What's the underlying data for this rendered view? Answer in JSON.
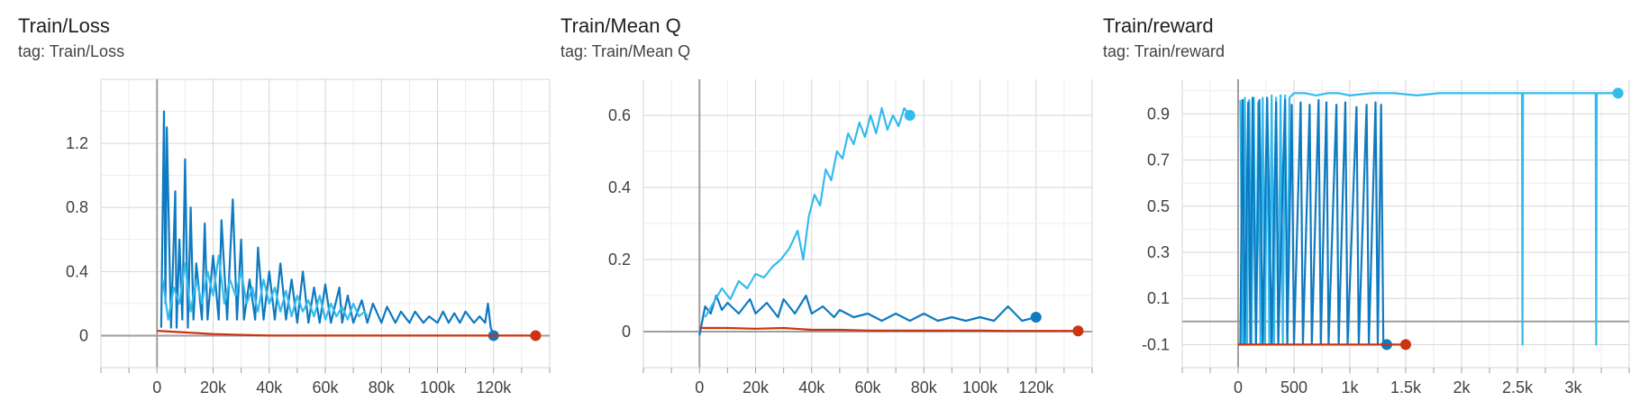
{
  "colors": {
    "series_dark_blue": "#0f7ac0",
    "series_light_blue": "#33bbee",
    "series_red": "#cc3311",
    "grid": "#d6d6d6",
    "axis": "#9e9e9e"
  },
  "chart_data": [
    {
      "type": "line",
      "title": "Train/Loss",
      "tag": "tag: Train/Loss",
      "xlim": [
        -20000,
        140000
      ],
      "ylim": [
        -0.2,
        1.6
      ],
      "x_ticks": [
        0,
        20000,
        40000,
        60000,
        80000,
        100000,
        120000
      ],
      "x_tick_labels": [
        "0",
        "20k",
        "40k",
        "60k",
        "80k",
        "100k",
        "120k"
      ],
      "y_ticks": [
        0,
        0.4,
        0.8,
        1.2
      ],
      "y_tick_labels": [
        "0",
        "0.4",
        "0.8",
        "1.2"
      ],
      "grid": true,
      "series": [
        {
          "color": "#0f7ac0",
          "endpoint_marker": true,
          "x": [
            1500,
            2500,
            3000,
            3500,
            5000,
            6500,
            7000,
            8000,
            9000,
            10000,
            11000,
            12000,
            13000,
            14000,
            16000,
            17000,
            18000,
            20000,
            22000,
            23000,
            25000,
            27000,
            28500,
            30000,
            31000,
            33000,
            35000,
            36000,
            38000,
            40000,
            42000,
            44000,
            46000,
            48000,
            50000,
            52000,
            54000,
            56000,
            58000,
            60000,
            62000,
            65000,
            66000,
            68000,
            70000,
            73000,
            75000,
            77000,
            80000,
            82000,
            85000,
            87000,
            90000,
            92000,
            95000,
            97000,
            100000,
            102000,
            104000,
            106000,
            108000,
            110000,
            113000,
            115000,
            117000,
            118000,
            119000,
            120000
          ],
          "y": [
            0.05,
            1.4,
            0.2,
            1.3,
            0.05,
            0.9,
            0.05,
            0.6,
            0.1,
            1.1,
            0.05,
            0.8,
            0.1,
            0.45,
            0.1,
            0.7,
            0.1,
            0.5,
            0.1,
            0.72,
            0.1,
            0.85,
            0.1,
            0.6,
            0.1,
            0.35,
            0.1,
            0.55,
            0.1,
            0.4,
            0.1,
            0.45,
            0.1,
            0.35,
            0.08,
            0.4,
            0.08,
            0.3,
            0.08,
            0.32,
            0.08,
            0.3,
            0.08,
            0.25,
            0.08,
            0.22,
            0.08,
            0.2,
            0.08,
            0.18,
            0.08,
            0.15,
            0.08,
            0.15,
            0.08,
            0.12,
            0.08,
            0.15,
            0.08,
            0.14,
            0.08,
            0.15,
            0.08,
            0.12,
            0.08,
            0.2,
            0.05,
            0.0
          ]
        },
        {
          "color": "#33bbee",
          "endpoint_marker": false,
          "x": [
            2000,
            4000,
            6000,
            8000,
            10000,
            12000,
            14000,
            16000,
            18000,
            20000,
            22000,
            24000,
            26000,
            28000,
            30000,
            32000,
            34000,
            36000,
            38000,
            40000,
            42000,
            44000,
            46000,
            48000,
            50000,
            52000,
            54000,
            56000,
            58000,
            60000,
            62000,
            64000,
            66000,
            68000,
            70000,
            72000,
            74000,
            75000
          ],
          "y": [
            0.35,
            0.1,
            0.3,
            0.2,
            0.45,
            0.15,
            0.35,
            0.2,
            0.4,
            0.25,
            0.5,
            0.2,
            0.35,
            0.25,
            0.4,
            0.2,
            0.3,
            0.15,
            0.35,
            0.2,
            0.3,
            0.15,
            0.28,
            0.12,
            0.25,
            0.15,
            0.22,
            0.12,
            0.25,
            0.1,
            0.2,
            0.12,
            0.18,
            0.1,
            0.2,
            0.12,
            0.15,
            0.12
          ]
        },
        {
          "color": "#cc3311",
          "endpoint_marker": true,
          "x": [
            0,
            10000,
            20000,
            30000,
            40000,
            50000,
            60000,
            70000,
            80000,
            90000,
            100000,
            110000,
            120000,
            130000,
            135000
          ],
          "y": [
            0.03,
            0.02,
            0.01,
            0.005,
            0.0,
            0.0,
            0.0,
            0.0,
            0.0,
            0.0,
            0.0,
            0.0,
            0.0,
            0.0,
            0.0
          ]
        }
      ]
    },
    {
      "type": "line",
      "title": "Train/Mean Q",
      "tag": "tag: Train/Mean Q",
      "xlim": [
        -20000,
        140000
      ],
      "ylim": [
        -0.1,
        0.7
      ],
      "x_ticks": [
        0,
        20000,
        40000,
        60000,
        80000,
        100000,
        120000
      ],
      "x_tick_labels": [
        "0",
        "20k",
        "40k",
        "60k",
        "80k",
        "100k",
        "120k"
      ],
      "y_ticks": [
        0,
        0.2,
        0.4,
        0.6
      ],
      "y_tick_labels": [
        "0",
        "0.2",
        "0.4",
        "0.6"
      ],
      "grid": true,
      "series": [
        {
          "color": "#0f7ac0",
          "endpoint_marker": true,
          "x": [
            0,
            2000,
            4000,
            6000,
            8000,
            10000,
            14000,
            18000,
            20000,
            24000,
            28000,
            30000,
            34000,
            38000,
            40000,
            44000,
            48000,
            50000,
            55000,
            60000,
            65000,
            70000,
            75000,
            80000,
            85000,
            90000,
            95000,
            100000,
            105000,
            110000,
            115000,
            120000
          ],
          "y": [
            -0.01,
            0.07,
            0.05,
            0.1,
            0.06,
            0.08,
            0.05,
            0.09,
            0.05,
            0.08,
            0.04,
            0.09,
            0.05,
            0.1,
            0.05,
            0.07,
            0.04,
            0.06,
            0.04,
            0.05,
            0.03,
            0.05,
            0.03,
            0.05,
            0.03,
            0.04,
            0.03,
            0.04,
            0.03,
            0.07,
            0.03,
            0.04
          ]
        },
        {
          "color": "#33bbee",
          "endpoint_marker": true,
          "x": [
            2000,
            5000,
            8000,
            11000,
            14000,
            17000,
            20000,
            23000,
            26000,
            29000,
            32000,
            35000,
            37000,
            39000,
            41000,
            43000,
            45000,
            47000,
            49000,
            51000,
            53000,
            55000,
            57000,
            59000,
            61000,
            63000,
            65000,
            67000,
            69000,
            71000,
            73000,
            75000
          ],
          "y": [
            0.04,
            0.08,
            0.12,
            0.09,
            0.14,
            0.12,
            0.16,
            0.15,
            0.18,
            0.2,
            0.23,
            0.28,
            0.2,
            0.32,
            0.38,
            0.35,
            0.45,
            0.42,
            0.5,
            0.48,
            0.55,
            0.52,
            0.58,
            0.54,
            0.6,
            0.55,
            0.62,
            0.56,
            0.6,
            0.57,
            0.62,
            0.6
          ]
        },
        {
          "color": "#cc3311",
          "endpoint_marker": true,
          "x": [
            0,
            10000,
            20000,
            30000,
            40000,
            50000,
            60000,
            70000,
            80000,
            90000,
            100000,
            110000,
            120000,
            130000,
            135000
          ],
          "y": [
            0.01,
            0.01,
            0.008,
            0.01,
            0.005,
            0.005,
            0.003,
            0.003,
            0.003,
            0.003,
            0.003,
            0.002,
            0.002,
            0.002,
            0.002
          ]
        }
      ]
    },
    {
      "type": "line",
      "title": "Train/reward",
      "tag": "tag: Train/reward",
      "xlim": [
        -500,
        3500
      ],
      "ylim": [
        -0.2,
        1.05
      ],
      "x_ticks": [
        0,
        500,
        1000,
        1500,
        2000,
        2500,
        3000
      ],
      "x_tick_labels": [
        "0",
        "500",
        "1k",
        "1.5k",
        "2k",
        "2.5k",
        "3k"
      ],
      "y_ticks": [
        -0.1,
        0.1,
        0.3,
        0.5,
        0.7,
        0.9
      ],
      "y_tick_labels": [
        "-0.1",
        "0.1",
        "0.3",
        "0.5",
        "0.7",
        "0.9"
      ],
      "grid": true,
      "series": [
        {
          "color": "#33bbee",
          "endpoint_marker": true,
          "x": [
            20,
            40,
            60,
            80,
            100,
            120,
            140,
            160,
            180,
            200,
            220,
            240,
            260,
            280,
            300,
            320,
            340,
            360,
            380,
            400,
            420,
            440,
            460,
            480,
            500,
            600,
            700,
            800,
            900,
            1000,
            1200,
            1400,
            1600,
            1800,
            2000,
            2200,
            2400,
            2540,
            2545,
            2550,
            2600,
            2800,
            3000,
            3200,
            3205,
            3210,
            3300,
            3400
          ],
          "y": [
            0.96,
            -0.1,
            0.97,
            -0.1,
            0.96,
            -0.1,
            0.97,
            -0.1,
            0.95,
            -0.1,
            0.97,
            -0.1,
            0.96,
            -0.1,
            0.98,
            -0.1,
            0.97,
            -0.1,
            0.98,
            -0.1,
            0.98,
            -0.1,
            0.97,
            0.98,
            0.99,
            0.99,
            0.98,
            0.99,
            0.99,
            0.98,
            0.99,
            0.99,
            0.98,
            0.99,
            0.99,
            0.99,
            0.99,
            0.99,
            -0.1,
            0.99,
            0.99,
            0.99,
            0.99,
            0.99,
            -0.1,
            0.99,
            0.99,
            0.99
          ]
        },
        {
          "color": "#0f7ac0",
          "endpoint_marker": true,
          "x": [
            20,
            40,
            60,
            90,
            110,
            130,
            160,
            190,
            220,
            260,
            300,
            340,
            360,
            420,
            440,
            480,
            500,
            560,
            580,
            640,
            660,
            720,
            740,
            790,
            810,
            880,
            900,
            960,
            980,
            1060,
            1080,
            1150,
            1170,
            1230,
            1250,
            1280,
            1300,
            1330
          ],
          "y": [
            -0.1,
            0.96,
            -0.1,
            0.95,
            -0.1,
            0.97,
            -0.1,
            0.96,
            -0.1,
            0.97,
            -0.1,
            0.95,
            -0.1,
            0.96,
            -0.1,
            0.94,
            -0.1,
            0.95,
            -0.1,
            0.94,
            -0.1,
            0.96,
            -0.1,
            0.95,
            -0.1,
            0.94,
            -0.1,
            0.95,
            -0.1,
            0.93,
            -0.1,
            0.94,
            -0.1,
            0.95,
            -0.1,
            0.94,
            -0.1,
            -0.1
          ]
        },
        {
          "color": "#cc3311",
          "endpoint_marker": true,
          "x": [
            0,
            300,
            600,
            900,
            1200,
            1500
          ],
          "y": [
            -0.1,
            -0.1,
            -0.1,
            -0.1,
            -0.1,
            -0.1
          ]
        }
      ]
    }
  ]
}
